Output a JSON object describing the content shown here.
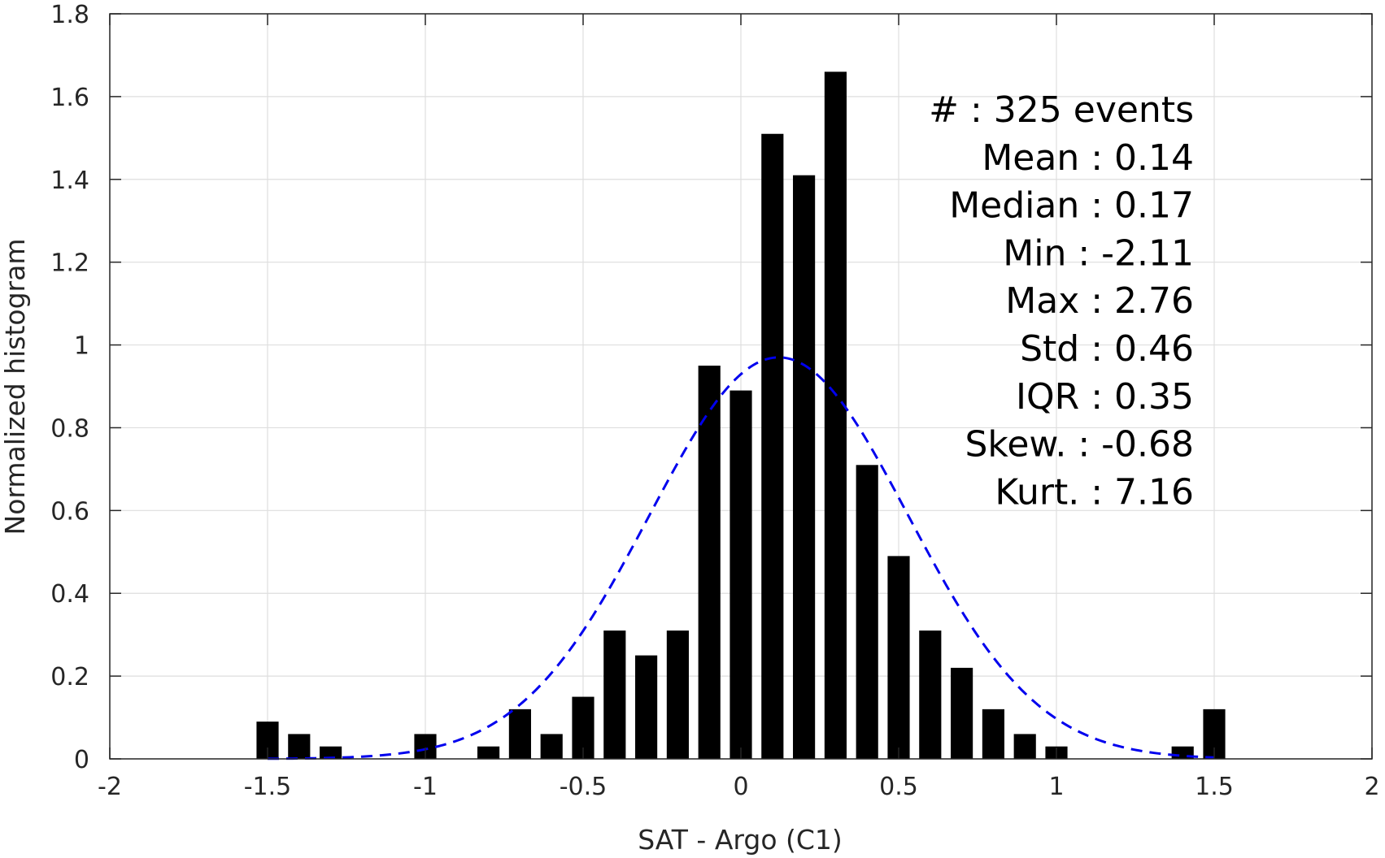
{
  "chart_data": {
    "type": "bar",
    "xlabel": "SAT - Argo (C1)",
    "ylabel": "Normalized histogram",
    "xlim": [
      -2,
      2
    ],
    "ylim": [
      0,
      1.8
    ],
    "grid": true,
    "x_ticks": [
      -2,
      -1.5,
      -1,
      -0.5,
      0,
      0.5,
      1,
      1.5,
      2
    ],
    "x_tick_labels": [
      "-2",
      "-1.5",
      "-1",
      "-0.5",
      "0",
      "0.5",
      "1",
      "1.5",
      "2"
    ],
    "y_ticks": [
      0,
      0.2,
      0.4,
      0.6,
      0.8,
      1,
      1.2,
      1.4,
      1.6,
      1.8
    ],
    "y_tick_labels": [
      "0",
      "0.2",
      "0.4",
      "0.6",
      "0.8",
      "1",
      "1.2",
      "1.4",
      "1.6",
      "1.8"
    ],
    "bar_width": 0.07,
    "bar_color": "#000000",
    "bars": {
      "x": [
        -1.5,
        -1.4,
        -1.3,
        -1.0,
        -0.8,
        -0.7,
        -0.6,
        -0.5,
        -0.4,
        -0.3,
        -0.2,
        -0.1,
        0.0,
        0.1,
        0.2,
        0.3,
        0.4,
        0.5,
        0.6,
        0.7,
        0.8,
        0.9,
        1.0,
        1.4,
        1.5
      ],
      "values": [
        0.09,
        0.06,
        0.03,
        0.06,
        0.03,
        0.12,
        0.06,
        0.15,
        0.31,
        0.25,
        0.31,
        0.95,
        0.89,
        1.51,
        1.41,
        1.66,
        0.71,
        0.49,
        0.31,
        0.22,
        0.12,
        0.06,
        0.03,
        0.03,
        0.12
      ]
    },
    "fit_curve": {
      "style": "dashed",
      "color": "#0000ee",
      "mean": 0.12,
      "std": 0.41,
      "peak": 0.97,
      "x_range": [
        -1.5,
        1.5
      ]
    },
    "stats_annotation": [
      {
        "label": "#  ",
        "value": ": 325 events"
      },
      {
        "label": "Mean ",
        "value": ": 0.14"
      },
      {
        "label": "Median ",
        "value": ": 0.17"
      },
      {
        "label": "Min ",
        "value": ": -2.11"
      },
      {
        "label": "Max ",
        "value": ": 2.76"
      },
      {
        "label": "Std ",
        "value": ": 0.46"
      },
      {
        "label": "IQR ",
        "value": ": 0.35"
      },
      {
        "label": "Skew. ",
        "value": ": -0.68"
      },
      {
        "label": "Kurt. ",
        "value": ": 7.16"
      }
    ]
  }
}
